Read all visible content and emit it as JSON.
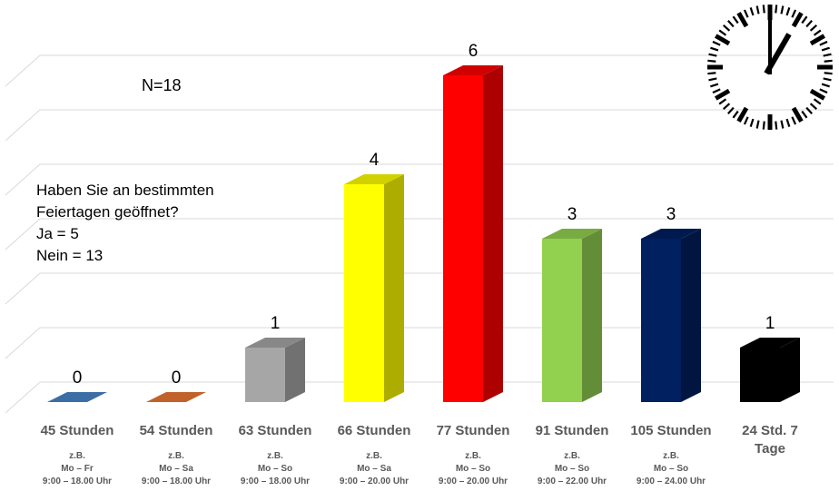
{
  "annotations": {
    "n": "N=18",
    "question": [
      "Haben Sie an bestimmten",
      "Feiertagen geöffnet?",
      "Ja = 5",
      "Nein = 13"
    ]
  },
  "chart_data": {
    "type": "bar",
    "title": "",
    "xlabel": "",
    "ylabel": "",
    "ylim": [
      0,
      6
    ],
    "grid": true,
    "categories": [
      "45 Stunden",
      "54 Stunden",
      "63 Stunden",
      "66 Stunden",
      "77 Stunden",
      "91 Stunden",
      "105 Stunden",
      "24 Std. 7 Tage"
    ],
    "category_details": [
      [
        "z.B.",
        "Mo – Fr",
        "9:00 – 18.00 Uhr"
      ],
      [
        "z.B.",
        "Mo – Sa",
        "9:00 – 18.00 Uhr"
      ],
      [
        "z.B.",
        "Mo – So",
        "9:00 – 18.00 Uhr"
      ],
      [
        "z.B.",
        "Mo – Sa",
        "9:00 – 20.00 Uhr"
      ],
      [
        "z.B.",
        "Mo – So",
        "9:00 – 20.00 Uhr"
      ],
      [
        "z.B.",
        "Mo – So",
        "9:00 – 22.00 Uhr"
      ],
      [
        "z.B.",
        "Mo – So",
        "9:00 – 24.00 Uhr"
      ],
      []
    ],
    "values": [
      0,
      0,
      1,
      4,
      6,
      3,
      3,
      1
    ],
    "colors": [
      "#3b6ea5",
      "#c0622a",
      "#a6a6a6",
      "#ffff00",
      "#ff0000",
      "#92d050",
      "#002060",
      "#000000"
    ]
  },
  "icons": {
    "clock": "wall-clock-icon"
  }
}
